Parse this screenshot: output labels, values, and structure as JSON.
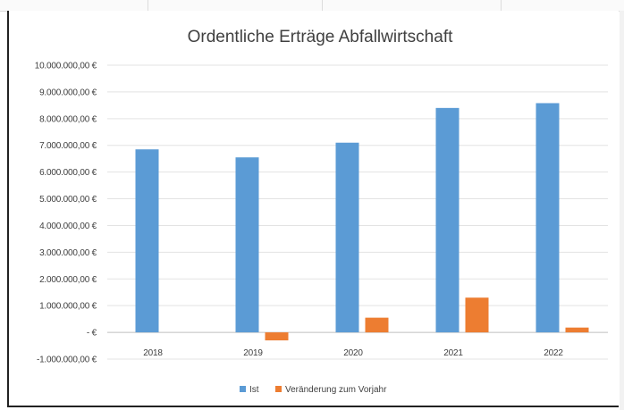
{
  "chart_data": {
    "type": "bar",
    "title": "Ordentliche Erträge Abfallwirtschaft",
    "categories": [
      "2018",
      "2019",
      "2020",
      "2021",
      "2022"
    ],
    "series": [
      {
        "name": "Ist",
        "color": "#5B9BD5",
        "values": [
          6850000,
          6550000,
          7100000,
          8400000,
          8580000
        ]
      },
      {
        "name": "Veränderung zum Vorjahr",
        "color": "#ED7D31",
        "values": [
          0,
          -300000,
          550000,
          1300000,
          180000
        ]
      }
    ],
    "ylim": [
      -1000000,
      10000000
    ],
    "y_ticks": [
      {
        "value": 10000000,
        "label": "10.000.000,00 €"
      },
      {
        "value": 9000000,
        "label": "9.000.000,00 €"
      },
      {
        "value": 8000000,
        "label": "8.000.000,00 €"
      },
      {
        "value": 7000000,
        "label": "7.000.000,00 €"
      },
      {
        "value": 6000000,
        "label": "6.000.000,00 €"
      },
      {
        "value": 5000000,
        "label": "5.000.000,00 €"
      },
      {
        "value": 4000000,
        "label": "4.000.000,00 €"
      },
      {
        "value": 3000000,
        "label": "3.000.000,00 €"
      },
      {
        "value": 2000000,
        "label": "2.000.000,00 €"
      },
      {
        "value": 1000000,
        "label": "1.000.000,00 €"
      },
      {
        "value": 0,
        "label": "-   €"
      },
      {
        "value": -1000000,
        "label": "-1.000.000,00 €"
      }
    ],
    "grid": true,
    "legend_position": "bottom"
  }
}
